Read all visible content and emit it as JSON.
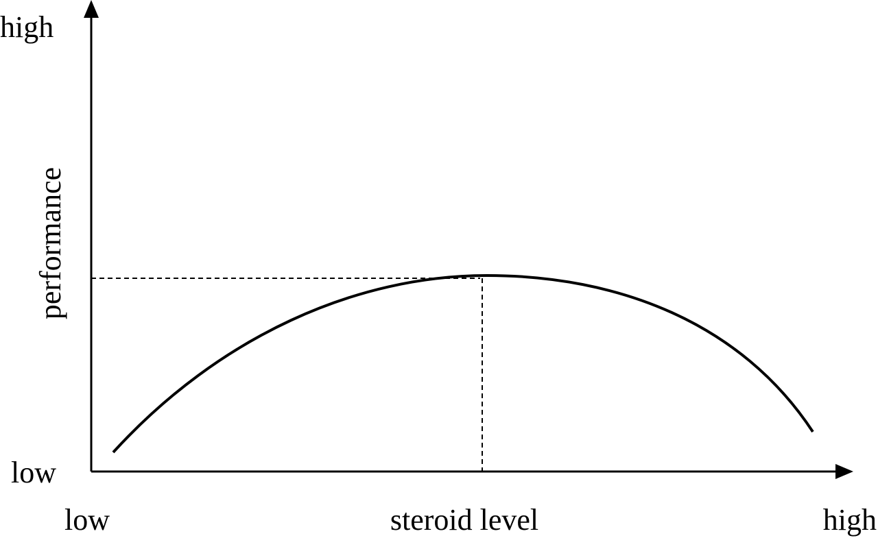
{
  "y_axis": {
    "label": "performance",
    "high": "high",
    "low": "low"
  },
  "x_axis": {
    "label": "steroid level",
    "low": "low",
    "high": "high"
  }
}
